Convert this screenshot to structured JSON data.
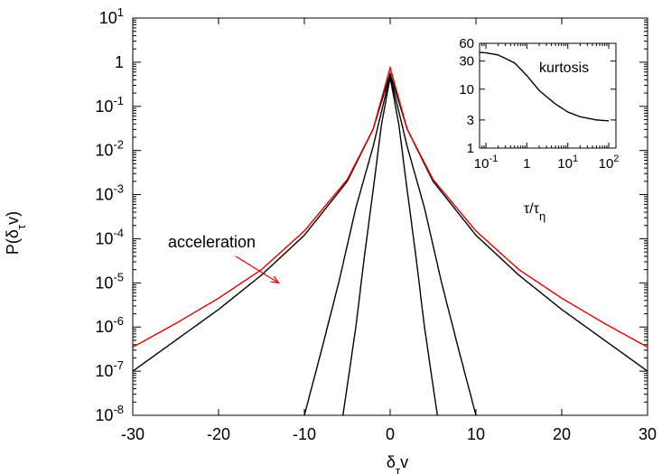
{
  "chart_data": [
    {
      "type": "line",
      "title": "",
      "xlabel": "δτv",
      "ylabel": "P(δτv)",
      "xlim": [
        -30,
        30
      ],
      "ylim": [
        1e-08,
        10
      ],
      "yscale": "log",
      "grid": false,
      "x_ticks": [
        -30,
        -20,
        -10,
        0,
        10,
        20,
        30
      ],
      "y_ticks": [
        {
          "base": "10",
          "exp": "1"
        },
        {
          "base": "1",
          "exp": ""
        },
        {
          "base": "10",
          "exp": "-1"
        },
        {
          "base": "10",
          "exp": "-2"
        },
        {
          "base": "10",
          "exp": "-3"
        },
        {
          "base": "10",
          "exp": "-4"
        },
        {
          "base": "10",
          "exp": "-5"
        },
        {
          "base": "10",
          "exp": "-6"
        },
        {
          "base": "10",
          "exp": "-7"
        },
        {
          "base": "10",
          "exp": "-8"
        }
      ],
      "series": [
        {
          "color": "#000000",
          "x": [
            -5.5,
            -4,
            -3,
            -2,
            -1,
            0,
            1,
            2,
            3,
            4,
            5.5
          ],
          "y": [
            1e-08,
            1e-06,
            4e-05,
            0.0012,
            0.04,
            0.45,
            0.04,
            0.0012,
            4e-05,
            1e-06,
            1e-08
          ]
        },
        {
          "color": "#000000",
          "x": [
            -10,
            -8,
            -6,
            -4,
            -2,
            0,
            2,
            4,
            6,
            8,
            10
          ],
          "y": [
            1e-08,
            3e-07,
            1e-05,
            0.0005,
            0.012,
            0.5,
            0.012,
            0.0005,
            1e-05,
            3e-07,
            1e-08
          ]
        },
        {
          "color": "#000000",
          "x": [
            -30,
            -25,
            -20,
            -15,
            -10,
            -5,
            -2,
            0,
            2,
            5,
            10,
            15,
            20,
            25,
            30
          ],
          "y": [
            1e-07,
            5e-07,
            2.5e-06,
            1.5e-05,
            0.00012,
            0.002,
            0.03,
            0.55,
            0.03,
            0.002,
            0.00012,
            1.5e-05,
            2.5e-06,
            5e-07,
            1e-07
          ]
        },
        {
          "color": "#e00000",
          "x": [
            -30,
            -25,
            -20,
            -15,
            -10,
            -5,
            -2,
            0,
            2,
            5,
            10,
            15,
            20,
            25,
            30
          ],
          "y": [
            3.5e-07,
            1.2e-06,
            4.5e-06,
            2e-05,
            0.00015,
            0.0022,
            0.03,
            0.75,
            0.03,
            0.0022,
            0.00015,
            2e-05,
            4.5e-06,
            1.2e-06,
            3.5e-07
          ]
        }
      ],
      "annotations": [
        {
          "text": "acceleration",
          "arrow_from": [
            -18,
            4e-05
          ],
          "arrow_to": [
            -13,
            1e-05
          ]
        }
      ]
    },
    {
      "type": "line",
      "title": "",
      "xlabel": "τ/τη",
      "ylabel": "",
      "xscale": "log",
      "yscale": "log",
      "xlim": [
        0.07,
        150
      ],
      "ylim": [
        1,
        60
      ],
      "x_ticks": [
        {
          "base": "10",
          "exp": "-1"
        },
        {
          "base": "1",
          "exp": ""
        },
        {
          "base": "10",
          "exp": "1"
        },
        {
          "base": "10",
          "exp": "2"
        }
      ],
      "y_ticks": [
        "60",
        "30",
        "10",
        "3",
        "1"
      ],
      "annotations": [
        {
          "text": "kurtosis"
        }
      ],
      "series": [
        {
          "color": "#000000",
          "x": [
            0.07,
            0.1,
            0.2,
            0.5,
            1,
            2,
            5,
            10,
            20,
            50,
            100
          ],
          "y": [
            42,
            41.5,
            38,
            28,
            17,
            9.5,
            5.6,
            4.1,
            3.4,
            3.0,
            2.9
          ]
        }
      ]
    }
  ]
}
